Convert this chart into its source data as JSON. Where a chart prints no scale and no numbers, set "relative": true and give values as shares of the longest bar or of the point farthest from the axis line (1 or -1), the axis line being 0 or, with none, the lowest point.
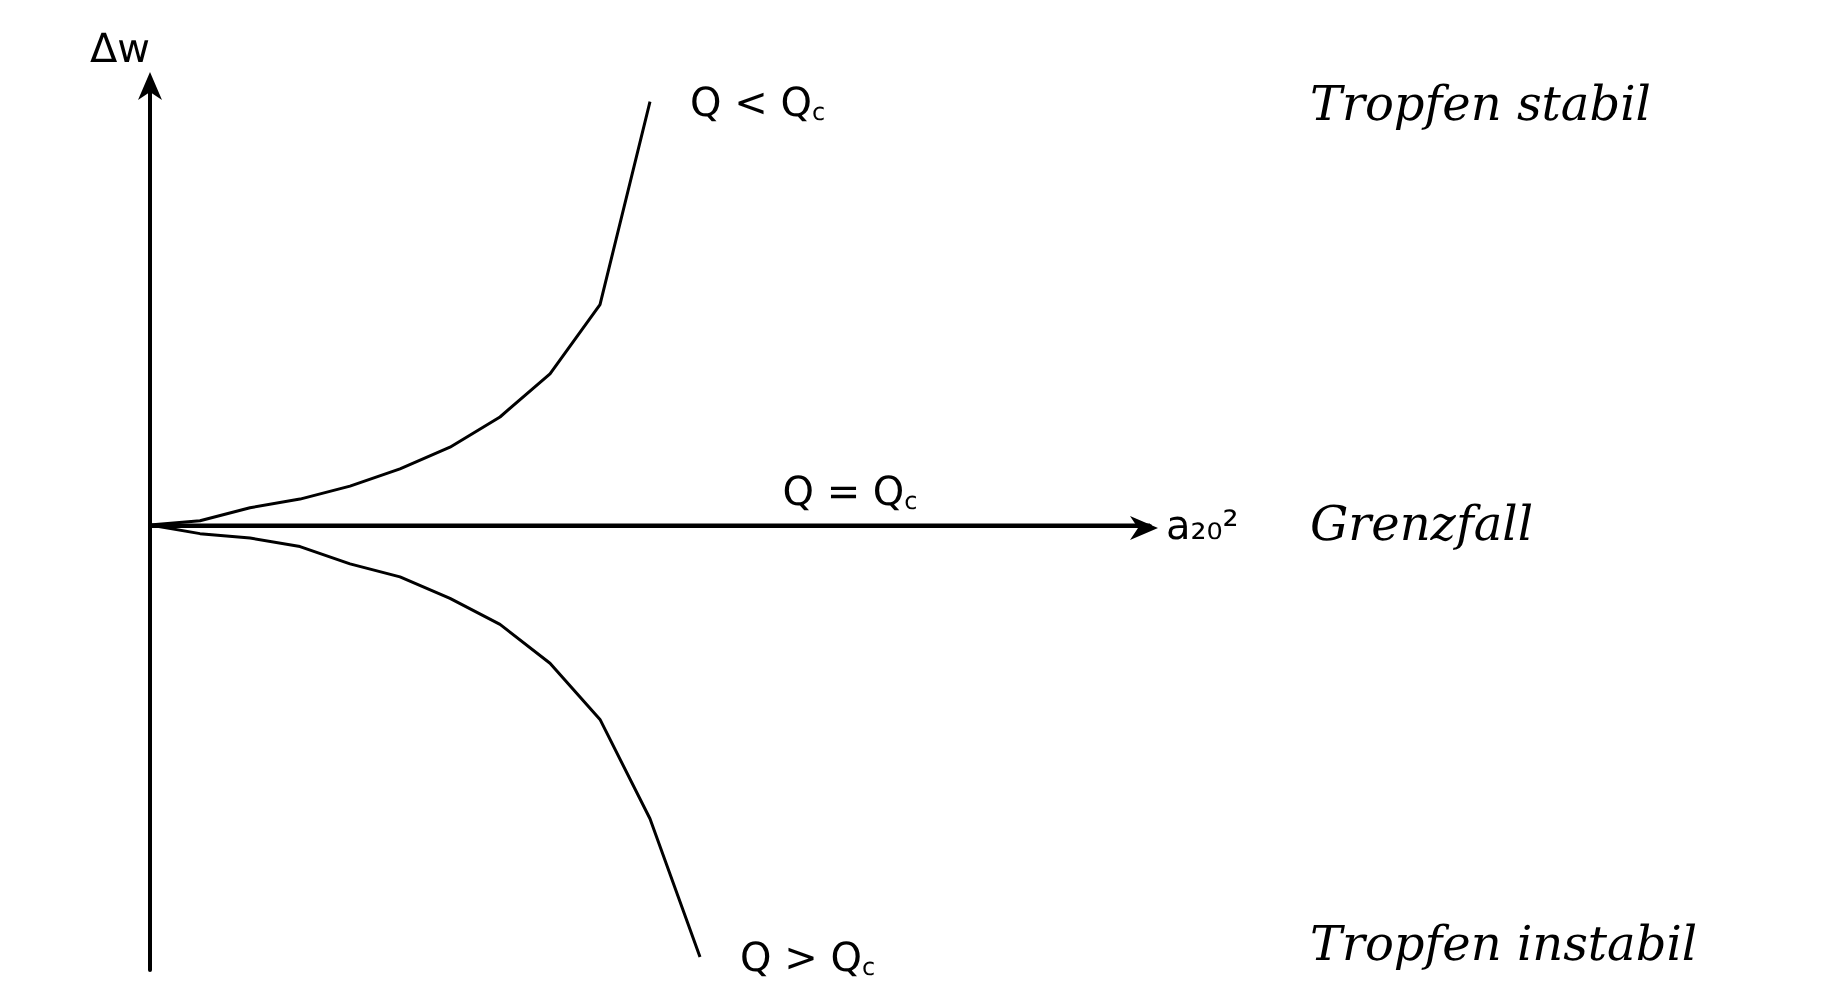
{
  "chart_data": {
    "type": "line",
    "relative": true,
    "xlabel": "a₂₀²",
    "ylabel": "Δw",
    "categories": [
      null,
      null,
      null,
      null,
      null,
      null,
      null,
      null,
      null,
      null,
      null,
      null,
      null,
      null,
      null,
      null,
      null,
      null,
      null,
      null,
      null
    ],
    "series": [
      {
        "name": "Q < Q$_{c}$",
        "color": "#000000",
        "values": [
          0,
          0.01,
          0.04,
          0.06,
          0.09,
          0.13,
          0.18,
          0.25,
          0.35,
          0.51,
          0.98,
          null,
          null,
          null,
          null,
          null,
          null,
          null,
          null,
          null,
          null
        ]
      },
      {
        "name": "Q = Q$_{c}$",
        "color": "#000000",
        "values": [
          0,
          0,
          0,
          0,
          0,
          0,
          0,
          0,
          0,
          0,
          0,
          0,
          0,
          0,
          0,
          0,
          0,
          0,
          0,
          0,
          0
        ]
      },
      {
        "name": "Q > Q$_{c}$",
        "color": "#000000",
        "values": [
          0,
          -0.02,
          -0.03,
          -0.05,
          -0.09,
          -0.12,
          -0.17,
          -0.23,
          -0.32,
          -0.45,
          -0.68,
          -1,
          null,
          null,
          null,
          null,
          null,
          null,
          null,
          null,
          null
        ]
      }
    ],
    "annotations": [
      "Tropfen stabil",
      "Grenzfall",
      "Tropfen instabil"
    ],
    "legend": false,
    "grid": false,
    "marker": "none",
    "line_style": "solid"
  }
}
